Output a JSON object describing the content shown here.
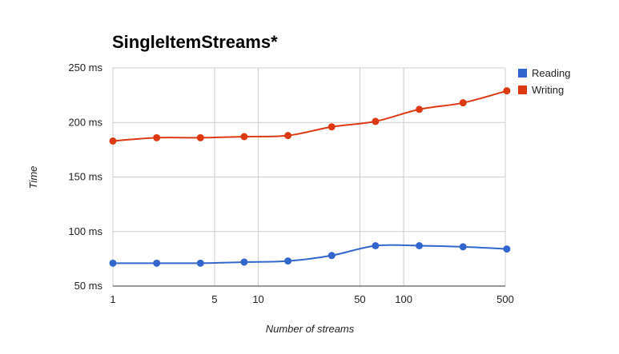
{
  "chart_data": {
    "type": "line",
    "title": "SingleItemStreams*",
    "xlabel": "Number of streams",
    "ylabel": "Time",
    "x_scale": "log",
    "xlim": [
      1,
      500
    ],
    "ylim": [
      50,
      250
    ],
    "x_ticks": [
      {
        "value": 1,
        "label": "1"
      },
      {
        "value": 5,
        "label": "5"
      },
      {
        "value": 10,
        "label": "10"
      },
      {
        "value": 50,
        "label": "50"
      },
      {
        "value": 100,
        "label": "100"
      },
      {
        "value": 500,
        "label": "500"
      }
    ],
    "y_ticks": [
      {
        "value": 50,
        "label": "50 ms"
      },
      {
        "value": 100,
        "label": "100 ms"
      },
      {
        "value": 150,
        "label": "150 ms"
      },
      {
        "value": 200,
        "label": "200 ms"
      },
      {
        "value": 250,
        "label": "250 ms"
      }
    ],
    "grid": true,
    "legend_position": "right",
    "x": [
      1,
      2,
      4,
      8,
      16,
      32,
      64,
      128,
      256,
      512
    ],
    "series": [
      {
        "name": "Reading",
        "color": "#3366cc",
        "values": [
          71,
          71,
          71,
          72,
          73,
          78,
          87,
          87,
          86,
          84
        ]
      },
      {
        "name": "Writing",
        "color": "#dc3912",
        "values": [
          183,
          186,
          186,
          187,
          188,
          196,
          201,
          212,
          218,
          229
        ]
      }
    ]
  }
}
